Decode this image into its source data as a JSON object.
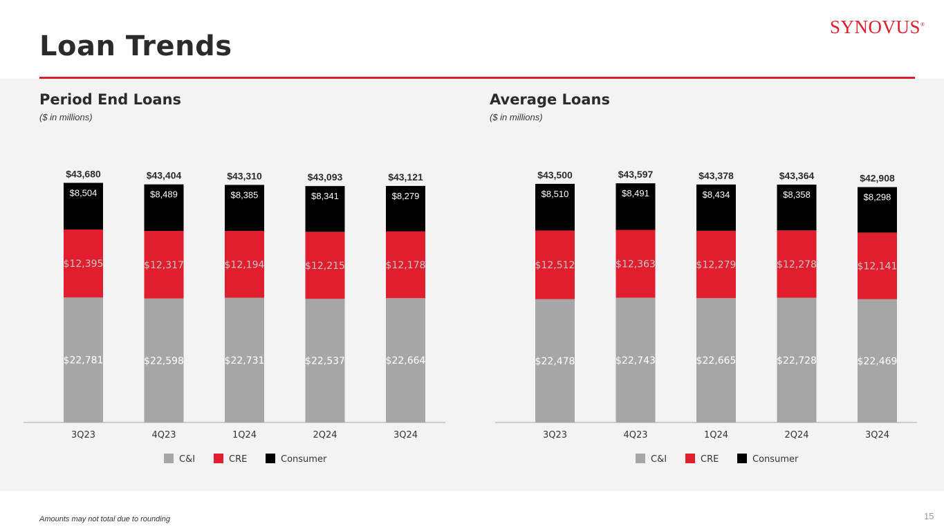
{
  "header": {
    "title": "Loan Trends",
    "logo": "SYNOVUS",
    "logo_mark": "®"
  },
  "colors": {
    "ci": "#a6a6a6",
    "cre": "#e01e2d",
    "consumer": "#000000",
    "accent": "#e01e2d"
  },
  "footer": {
    "note": "Amounts may not total due to rounding",
    "page": "15"
  },
  "chart_data": [
    {
      "type": "bar",
      "stacked": true,
      "title": "Period End Loans",
      "subtitle": "($ in millions)",
      "categories": [
        "3Q23",
        "4Q23",
        "1Q24",
        "2Q24",
        "3Q24"
      ],
      "series": [
        {
          "name": "C&I",
          "values": [
            22781,
            22598,
            22731,
            22537,
            22664
          ],
          "labels": [
            "$22,781",
            "$22,598",
            "$22,731",
            "$22,537",
            "$22,664"
          ]
        },
        {
          "name": "CRE",
          "values": [
            12395,
            12317,
            12194,
            12215,
            12178
          ],
          "labels": [
            "$12,395",
            "$12,317",
            "$12,194",
            "$12,215",
            "$12,178"
          ]
        },
        {
          "name": "Consumer",
          "values": [
            8504,
            8489,
            8385,
            8341,
            8279
          ],
          "labels": [
            "$8,504",
            "$8,489",
            "$8,385",
            "$8,341",
            "$8,279"
          ]
        }
      ],
      "totals": [
        "$43,680",
        "$43,404",
        "$43,310",
        "$43,093",
        "$43,121"
      ],
      "ylim": [
        0,
        45000
      ],
      "legend": "bottom-center"
    },
    {
      "type": "bar",
      "stacked": true,
      "title": "Average Loans",
      "subtitle": "($ in millions)",
      "categories": [
        "3Q23",
        "4Q23",
        "1Q24",
        "2Q24",
        "3Q24"
      ],
      "series": [
        {
          "name": "C&I",
          "values": [
            22478,
            22743,
            22665,
            22728,
            22469
          ],
          "labels": [
            "$22,478",
            "$22,743",
            "$22,665",
            "$22,728",
            "$22,469"
          ]
        },
        {
          "name": "CRE",
          "values": [
            12512,
            12363,
            12279,
            12278,
            12141
          ],
          "labels": [
            "$12,512",
            "$12,363",
            "$12,279",
            "$12,278",
            "$12,141"
          ]
        },
        {
          "name": "Consumer",
          "values": [
            8510,
            8491,
            8434,
            8358,
            8298
          ],
          "labels": [
            "$8,510",
            "$8,491",
            "$8,434",
            "$8,358",
            "$8,298"
          ]
        }
      ],
      "totals": [
        "$43,500",
        "$43,597",
        "$43,378",
        "$43,364",
        "$42,908"
      ],
      "ylim": [
        0,
        45000
      ],
      "legend": "bottom-center"
    }
  ]
}
